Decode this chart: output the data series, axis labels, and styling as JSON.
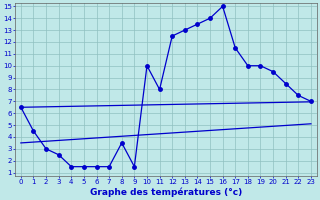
{
  "hours": [
    0,
    1,
    2,
    3,
    4,
    5,
    6,
    7,
    8,
    9,
    10,
    11,
    12,
    13,
    14,
    15,
    16,
    17,
    18,
    19,
    20,
    21,
    22,
    23
  ],
  "temp_main": [
    6.5,
    4.5,
    3.0,
    2.5,
    1.5,
    1.5,
    1.5,
    1.5,
    3.5,
    1.5,
    10.0,
    8.0,
    12.5,
    13.0,
    13.5,
    14.0,
    15.0,
    11.5,
    10.0,
    10.0,
    9.5,
    8.5,
    7.5,
    7.0
  ],
  "trend_upper": [
    6.5,
    6.52,
    6.54,
    6.56,
    6.58,
    6.6,
    6.62,
    6.64,
    6.66,
    6.68,
    6.7,
    6.72,
    6.74,
    6.76,
    6.78,
    6.8,
    6.82,
    6.84,
    6.86,
    6.88,
    6.9,
    6.92,
    6.94,
    6.96
  ],
  "trend_lower": [
    3.5,
    3.57,
    3.64,
    3.71,
    3.78,
    3.85,
    3.92,
    3.99,
    4.06,
    4.13,
    4.2,
    4.27,
    4.34,
    4.41,
    4.48,
    4.55,
    4.62,
    4.69,
    4.76,
    4.83,
    4.9,
    4.97,
    5.04,
    5.11
  ],
  "line_color": "#0000cc",
  "bg_color": "#c0e8e8",
  "grid_color": "#90c0c0",
  "xlabel": "Graphe des températures (°c)",
  "ylim_min": 1,
  "ylim_max": 15,
  "xlim_min": 0,
  "xlim_max": 23,
  "yticks": [
    1,
    2,
    3,
    4,
    5,
    6,
    7,
    8,
    9,
    10,
    11,
    12,
    13,
    14,
    15
  ],
  "xticks": [
    0,
    1,
    2,
    3,
    4,
    5,
    6,
    7,
    8,
    9,
    10,
    11,
    12,
    13,
    14,
    15,
    16,
    17,
    18,
    19,
    20,
    21,
    22,
    23
  ],
  "tick_fontsize": 5.0,
  "xlabel_fontsize": 6.5,
  "marker_size": 2.5,
  "line_width": 0.9
}
